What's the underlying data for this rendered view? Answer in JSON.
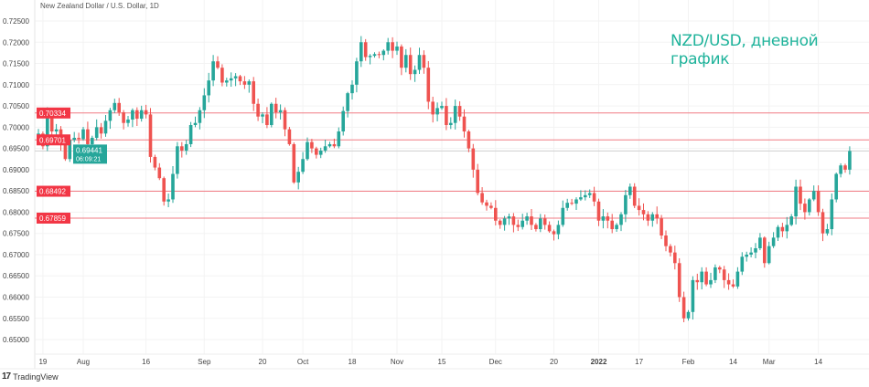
{
  "header": {
    "symbol": "New Zealand Dollar / U.S. Dollar, 1D"
  },
  "caption": "NZD/USD, дневной график",
  "branding": {
    "logo_mark": "17",
    "name": "TradingView"
  },
  "colors": {
    "up": "#26a69a",
    "down": "#ef5350",
    "level": "#f07c84",
    "level_label": "#f23645",
    "price_label": "#26a69a",
    "caption": "#1fb39b"
  },
  "chart_data": {
    "type": "candlestick",
    "title": "NZD/USD, дневной график",
    "subtitle": "New Zealand Dollar / U.S. Dollar, 1D",
    "ylim": [
      0.6465,
      0.7265
    ],
    "y_ticks": [
      "0.72500",
      "0.72000",
      "0.71500",
      "0.71000",
      "0.70500",
      "0.70000",
      "0.69500",
      "0.69000",
      "0.68500",
      "0.68000",
      "0.67500",
      "0.67000",
      "0.66500",
      "0.66000",
      "0.65500",
      "0.65000"
    ],
    "x_ticks": [
      {
        "label": "19",
        "index": 1
      },
      {
        "label": "Aug",
        "index": 10
      },
      {
        "label": "16",
        "index": 24
      },
      {
        "label": "Sep",
        "index": 37
      },
      {
        "label": "20",
        "index": 50
      },
      {
        "label": "Oct",
        "index": 59
      },
      {
        "label": "18",
        "index": 70
      },
      {
        "label": "Nov",
        "index": 80
      },
      {
        "label": "15",
        "index": 90
      },
      {
        "label": "Dec",
        "index": 102
      },
      {
        "label": "20",
        "index": 115
      },
      {
        "label": "2022",
        "index": 125
      },
      {
        "label": "17",
        "index": 134
      },
      {
        "label": "Feb",
        "index": 145
      },
      {
        "label": "14",
        "index": 155
      },
      {
        "label": "Mar",
        "index": 163
      },
      {
        "label": "14",
        "index": 174
      }
    ],
    "first_open": 0.697,
    "close": [
      0.6985,
      0.6955,
      0.7037,
      0.699,
      0.6995,
      0.696,
      0.6925,
      0.697,
      0.6975,
      0.6972,
      0.6995,
      0.696,
      0.6975,
      0.7,
      0.6985,
      0.7015,
      0.704,
      0.7057,
      0.7035,
      0.701,
      0.7018,
      0.704,
      0.702,
      0.704,
      0.703,
      0.693,
      0.6905,
      0.688,
      0.6825,
      0.683,
      0.689,
      0.6955,
      0.6945,
      0.696,
      0.7005,
      0.701,
      0.704,
      0.7075,
      0.711,
      0.7155,
      0.714,
      0.7105,
      0.711,
      0.7115,
      0.712,
      0.7108,
      0.71,
      0.7108,
      0.7055,
      0.7025,
      0.703,
      0.7005,
      0.7055,
      0.7035,
      0.704,
      0.6995,
      0.696,
      0.687,
      0.6895,
      0.6925,
      0.6965,
      0.695,
      0.6935,
      0.6945,
      0.6955,
      0.696,
      0.6955,
      0.699,
      0.7038,
      0.708,
      0.71,
      0.7155,
      0.72,
      0.7165,
      0.7168,
      0.7172,
      0.717,
      0.718,
      0.72,
      0.718,
      0.719,
      0.714,
      0.717,
      0.7125,
      0.7135,
      0.717,
      0.714,
      0.706,
      0.703,
      0.7045,
      0.705,
      0.7005,
      0.701,
      0.705,
      0.7025,
      0.699,
      0.695,
      0.69,
      0.6845,
      0.6823,
      0.6815,
      0.681,
      0.678,
      0.677,
      0.6785,
      0.679,
      0.677,
      0.6765,
      0.678,
      0.679,
      0.677,
      0.676,
      0.6785,
      0.677,
      0.6755,
      0.6748,
      0.677,
      0.681,
      0.6822,
      0.682,
      0.683,
      0.6835,
      0.684,
      0.6845,
      0.6825,
      0.678,
      0.679,
      0.678,
      0.676,
      0.677,
      0.6795,
      0.684,
      0.686,
      0.6815,
      0.6805,
      0.6795,
      0.678,
      0.6795,
      0.6785,
      0.6745,
      0.672,
      0.6705,
      0.668,
      0.66,
      0.655,
      0.6565,
      0.664,
      0.6635,
      0.666,
      0.663,
      0.664,
      0.667,
      0.6665,
      0.664,
      0.663,
      0.6625,
      0.666,
      0.6695,
      0.67,
      0.6705,
      0.6715,
      0.674,
      0.668,
      0.672,
      0.674,
      0.6765,
      0.6755,
      0.677,
      0.679,
      0.686,
      0.682,
      0.68,
      0.683,
      0.685,
      0.68,
      0.675,
      0.676,
      0.683,
      0.689,
      0.691,
      0.69,
      0.6944
    ],
    "levels": [
      {
        "value": 0.70334,
        "label": "0.70334"
      },
      {
        "value": 0.69701,
        "label": "0.69701"
      },
      {
        "value": 0.68492,
        "label": "0.68492"
      },
      {
        "value": 0.67859,
        "label": "0.67859"
      }
    ],
    "last_price": {
      "value": 0.69441,
      "label": "0.69441",
      "countdown": "06:09:21"
    }
  }
}
